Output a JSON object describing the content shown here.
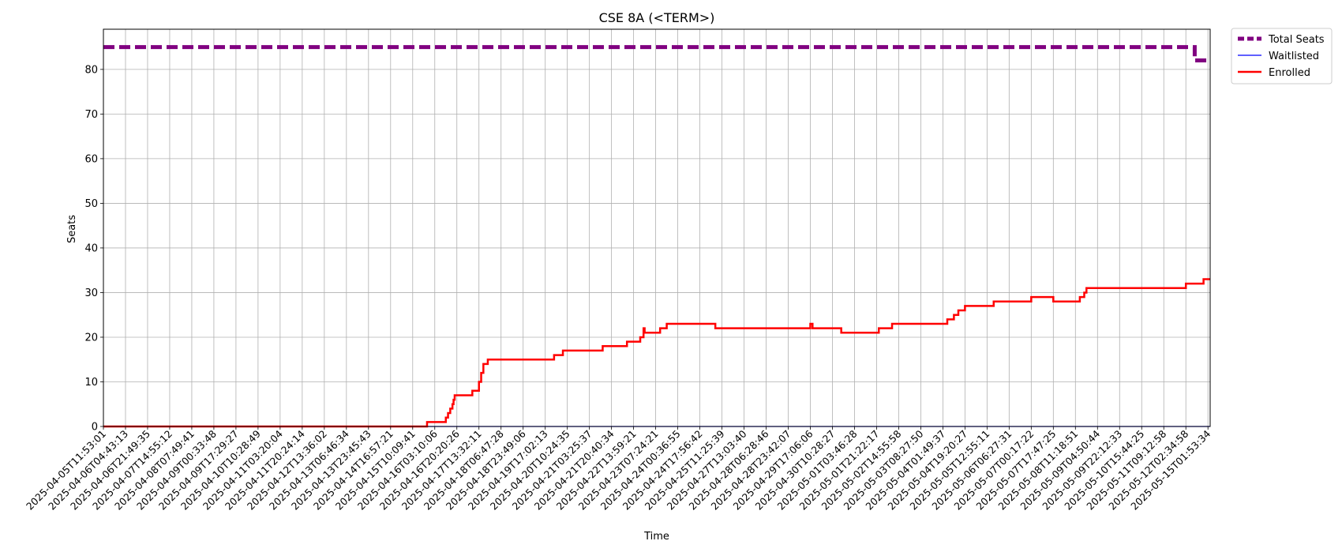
{
  "chart_data": {
    "type": "line",
    "title": "CSE 8A (<TERM>)",
    "xlabel": "Time",
    "ylabel": "Seats",
    "ylim": [
      0,
      89
    ],
    "yticks": [
      0,
      10,
      20,
      30,
      40,
      50,
      60,
      70,
      80
    ],
    "grid": true,
    "legend_position": "outside top-right",
    "categories": [
      "2025-04-05T11:53:01",
      "2025-04-06T04:43:13",
      "2025-04-06T21:49:35",
      "2025-04-07T14:55:12",
      "2025-04-08T07:49:41",
      "2025-04-09T00:33:48",
      "2025-04-09T17:29:27",
      "2025-04-10T10:28:49",
      "2025-04-11T03:20:04",
      "2025-04-11T20:24:14",
      "2025-04-12T13:36:02",
      "2025-04-13T06:46:34",
      "2025-04-13T23:45:43",
      "2025-04-14T16:57:21",
      "2025-04-15T10:09:41",
      "2025-04-16T03:10:06",
      "2025-04-16T20:20:26",
      "2025-04-17T13:32:11",
      "2025-04-18T06:47:28",
      "2025-04-18T23:49:06",
      "2025-04-19T17:02:13",
      "2025-04-20T10:24:35",
      "2025-04-21T03:25:37",
      "2025-04-21T20:40:34",
      "2025-04-22T13:59:21",
      "2025-04-23T07:24:21",
      "2025-04-24T00:36:55",
      "2025-04-24T17:56:42",
      "2025-04-25T11:25:39",
      "2025-04-27T13:03:40",
      "2025-04-28T06:28:46",
      "2025-04-28T23:42:07",
      "2025-04-29T17:06:06",
      "2025-04-30T10:28:27",
      "2025-05-01T03:46:28",
      "2025-05-01T21:22:17",
      "2025-05-02T14:55:58",
      "2025-05-03T08:27:50",
      "2025-05-04T01:49:37",
      "2025-05-04T19:20:27",
      "2025-05-05T12:55:11",
      "2025-05-06T06:27:31",
      "2025-05-07T00:17:22",
      "2025-05-07T17:47:25",
      "2025-05-08T11:18:51",
      "2025-05-09T04:50:44",
      "2025-05-09T22:12:33",
      "2025-05-10T15:44:25",
      "2025-05-11T09:12:58",
      "2025-05-12T02:34:58",
      "2025-05-15T01:53:34"
    ],
    "x_range": [
      0,
      50.1
    ],
    "series": [
      {
        "name": "Total Seats",
        "color": "#800080",
        "style": "dashed-thick",
        "points": [
          [
            0,
            85
          ],
          [
            49.4,
            85
          ],
          [
            49.4,
            82
          ],
          [
            50.1,
            82
          ]
        ]
      },
      {
        "name": "Waitlisted",
        "color": "#0000ff",
        "style": "thin",
        "points": [
          [
            0,
            0
          ],
          [
            50.1,
            0
          ]
        ]
      },
      {
        "name": "Enrolled",
        "color": "#ff0000",
        "style": "solid",
        "points": [
          [
            0,
            0
          ],
          [
            14.65,
            0
          ],
          [
            14.65,
            1
          ],
          [
            15.5,
            1
          ],
          [
            15.5,
            2
          ],
          [
            15.6,
            2
          ],
          [
            15.6,
            3
          ],
          [
            15.7,
            3
          ],
          [
            15.7,
            4
          ],
          [
            15.8,
            4
          ],
          [
            15.8,
            5
          ],
          [
            15.85,
            5
          ],
          [
            15.85,
            6
          ],
          [
            15.9,
            6
          ],
          [
            15.9,
            7
          ],
          [
            16.7,
            7
          ],
          [
            16.7,
            8
          ],
          [
            17.0,
            8
          ],
          [
            17.0,
            10
          ],
          [
            17.1,
            10
          ],
          [
            17.1,
            12
          ],
          [
            17.2,
            12
          ],
          [
            17.2,
            14
          ],
          [
            17.4,
            14
          ],
          [
            17.4,
            15
          ],
          [
            20.4,
            15
          ],
          [
            20.4,
            16
          ],
          [
            20.8,
            16
          ],
          [
            20.8,
            17
          ],
          [
            22.6,
            17
          ],
          [
            22.6,
            18
          ],
          [
            23.7,
            18
          ],
          [
            23.7,
            19
          ],
          [
            24.3,
            19
          ],
          [
            24.3,
            20
          ],
          [
            24.45,
            20
          ],
          [
            24.45,
            22
          ],
          [
            24.5,
            22
          ],
          [
            24.5,
            21
          ],
          [
            25.2,
            21
          ],
          [
            25.2,
            22
          ],
          [
            25.5,
            22
          ],
          [
            25.5,
            23
          ],
          [
            27.7,
            23
          ],
          [
            27.7,
            22
          ],
          [
            32.0,
            22
          ],
          [
            32.0,
            23
          ],
          [
            32.1,
            23
          ],
          [
            32.1,
            22
          ],
          [
            33.4,
            22
          ],
          [
            33.4,
            21
          ],
          [
            35.1,
            21
          ],
          [
            35.1,
            22
          ],
          [
            35.7,
            22
          ],
          [
            35.7,
            23
          ],
          [
            38.2,
            23
          ],
          [
            38.2,
            24
          ],
          [
            38.5,
            24
          ],
          [
            38.5,
            25
          ],
          [
            38.7,
            25
          ],
          [
            38.7,
            26
          ],
          [
            39.0,
            26
          ],
          [
            39.0,
            27
          ],
          [
            40.3,
            27
          ],
          [
            40.3,
            28
          ],
          [
            42.0,
            28
          ],
          [
            42.0,
            29
          ],
          [
            43.0,
            29
          ],
          [
            43.0,
            28
          ],
          [
            44.2,
            28
          ],
          [
            44.2,
            29
          ],
          [
            44.4,
            29
          ],
          [
            44.4,
            30
          ],
          [
            44.5,
            30
          ],
          [
            44.5,
            31
          ],
          [
            49.0,
            31
          ],
          [
            49.0,
            32
          ],
          [
            49.8,
            32
          ],
          [
            49.8,
            33
          ],
          [
            50.1,
            33
          ]
        ]
      }
    ]
  }
}
